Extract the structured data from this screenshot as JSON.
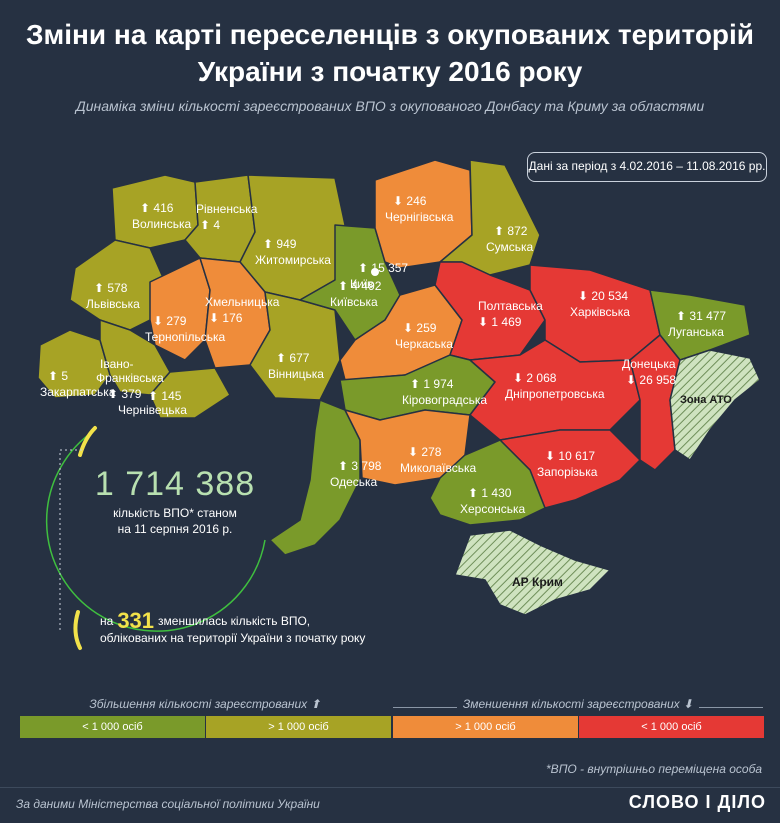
{
  "title_line1": "Зміни на карті переселенців з окупованих територій",
  "title_line2": "України з початку 2016 року",
  "subtitle": "Динаміка зміни кількості зареєстрованих ВПО з окупованого Донбасу та Криму за областями",
  "period": "Дані за період з 4.02.2016 – 11.08.2016 рр.",
  "colors": {
    "increase_small": "#7a9a2a",
    "increase_large": "#a7a325",
    "decrease_large": "#ef8c3a",
    "decrease_small": "#e53935",
    "occupied": "#cfe3c0"
  },
  "regions": [
    {
      "name": "Волинська",
      "value": "416",
      "trend": "up"
    },
    {
      "name": "Рівненська",
      "value": "4",
      "trend": "up"
    },
    {
      "name": "Житомирська",
      "value": "949",
      "trend": "up"
    },
    {
      "name": "Львівська",
      "value": "578",
      "trend": "up"
    },
    {
      "name": "Тернопільська",
      "value": "279",
      "trend": "down"
    },
    {
      "name": "Хмельницька",
      "value": "176",
      "trend": "down"
    },
    {
      "name": "Вінницька",
      "value": "677",
      "trend": "up"
    },
    {
      "name": "Закарпатська",
      "value": "5",
      "trend": "up"
    },
    {
      "name": "Івано-Франківська",
      "value": "379",
      "trend": "up"
    },
    {
      "name": "Чернівецька",
      "value": "145",
      "trend": "up"
    },
    {
      "name": "Київ",
      "value": "15 357",
      "trend": "up"
    },
    {
      "name": "Київська",
      "value": "4 492",
      "trend": "up"
    },
    {
      "name": "Чернігівська",
      "value": "246",
      "trend": "down"
    },
    {
      "name": "Сумська",
      "value": "872",
      "trend": "up"
    },
    {
      "name": "Черкаська",
      "value": "259",
      "trend": "down"
    },
    {
      "name": "Полтавська",
      "value": "1 469",
      "trend": "down"
    },
    {
      "name": "Харківська",
      "value": "20 534",
      "trend": "down"
    },
    {
      "name": "Луганська",
      "value": "31 477",
      "trend": "up"
    },
    {
      "name": "Кіровоградська",
      "value": "1 974",
      "trend": "up"
    },
    {
      "name": "Дніпропетровська",
      "value": "2 068",
      "trend": "down"
    },
    {
      "name": "Донецька",
      "value": "26 958",
      "trend": "down"
    },
    {
      "name": "Одеська",
      "value": "3 798",
      "trend": "up"
    },
    {
      "name": "Миколаївська",
      "value": "278",
      "trend": "down"
    },
    {
      "name": "Запорізька",
      "value": "10 617",
      "trend": "down"
    },
    {
      "name": "Херсонська",
      "value": "1 430",
      "trend": "up"
    }
  ],
  "zone_ato": "Зона АТО",
  "crimea": "АР Крим",
  "total_value": "1 714 388",
  "total_caption_1": "кількість ВПО* станом",
  "total_caption_2": "на 11 серпня 2016 р.",
  "decrease_prefix": "на",
  "decrease_value": "331",
  "decrease_text_1": "зменшилась кількість ВПО,",
  "decrease_text_2": "облікованих на території України з початку року",
  "legend": {
    "increase_header": "Збільшення кількості зареєстрованих",
    "decrease_header": "Зменшення кількості зареєстрованих",
    "items": [
      "< 1 000 осіб",
      "> 1 000 осіб",
      "> 1 000 осіб",
      "< 1 000 осіб"
    ]
  },
  "footnote": "*ВПО - внутрішньо переміщена особа",
  "source": "За даними Міністерства соціальної політики України",
  "logo": "СЛОВО І ДІЛО"
}
